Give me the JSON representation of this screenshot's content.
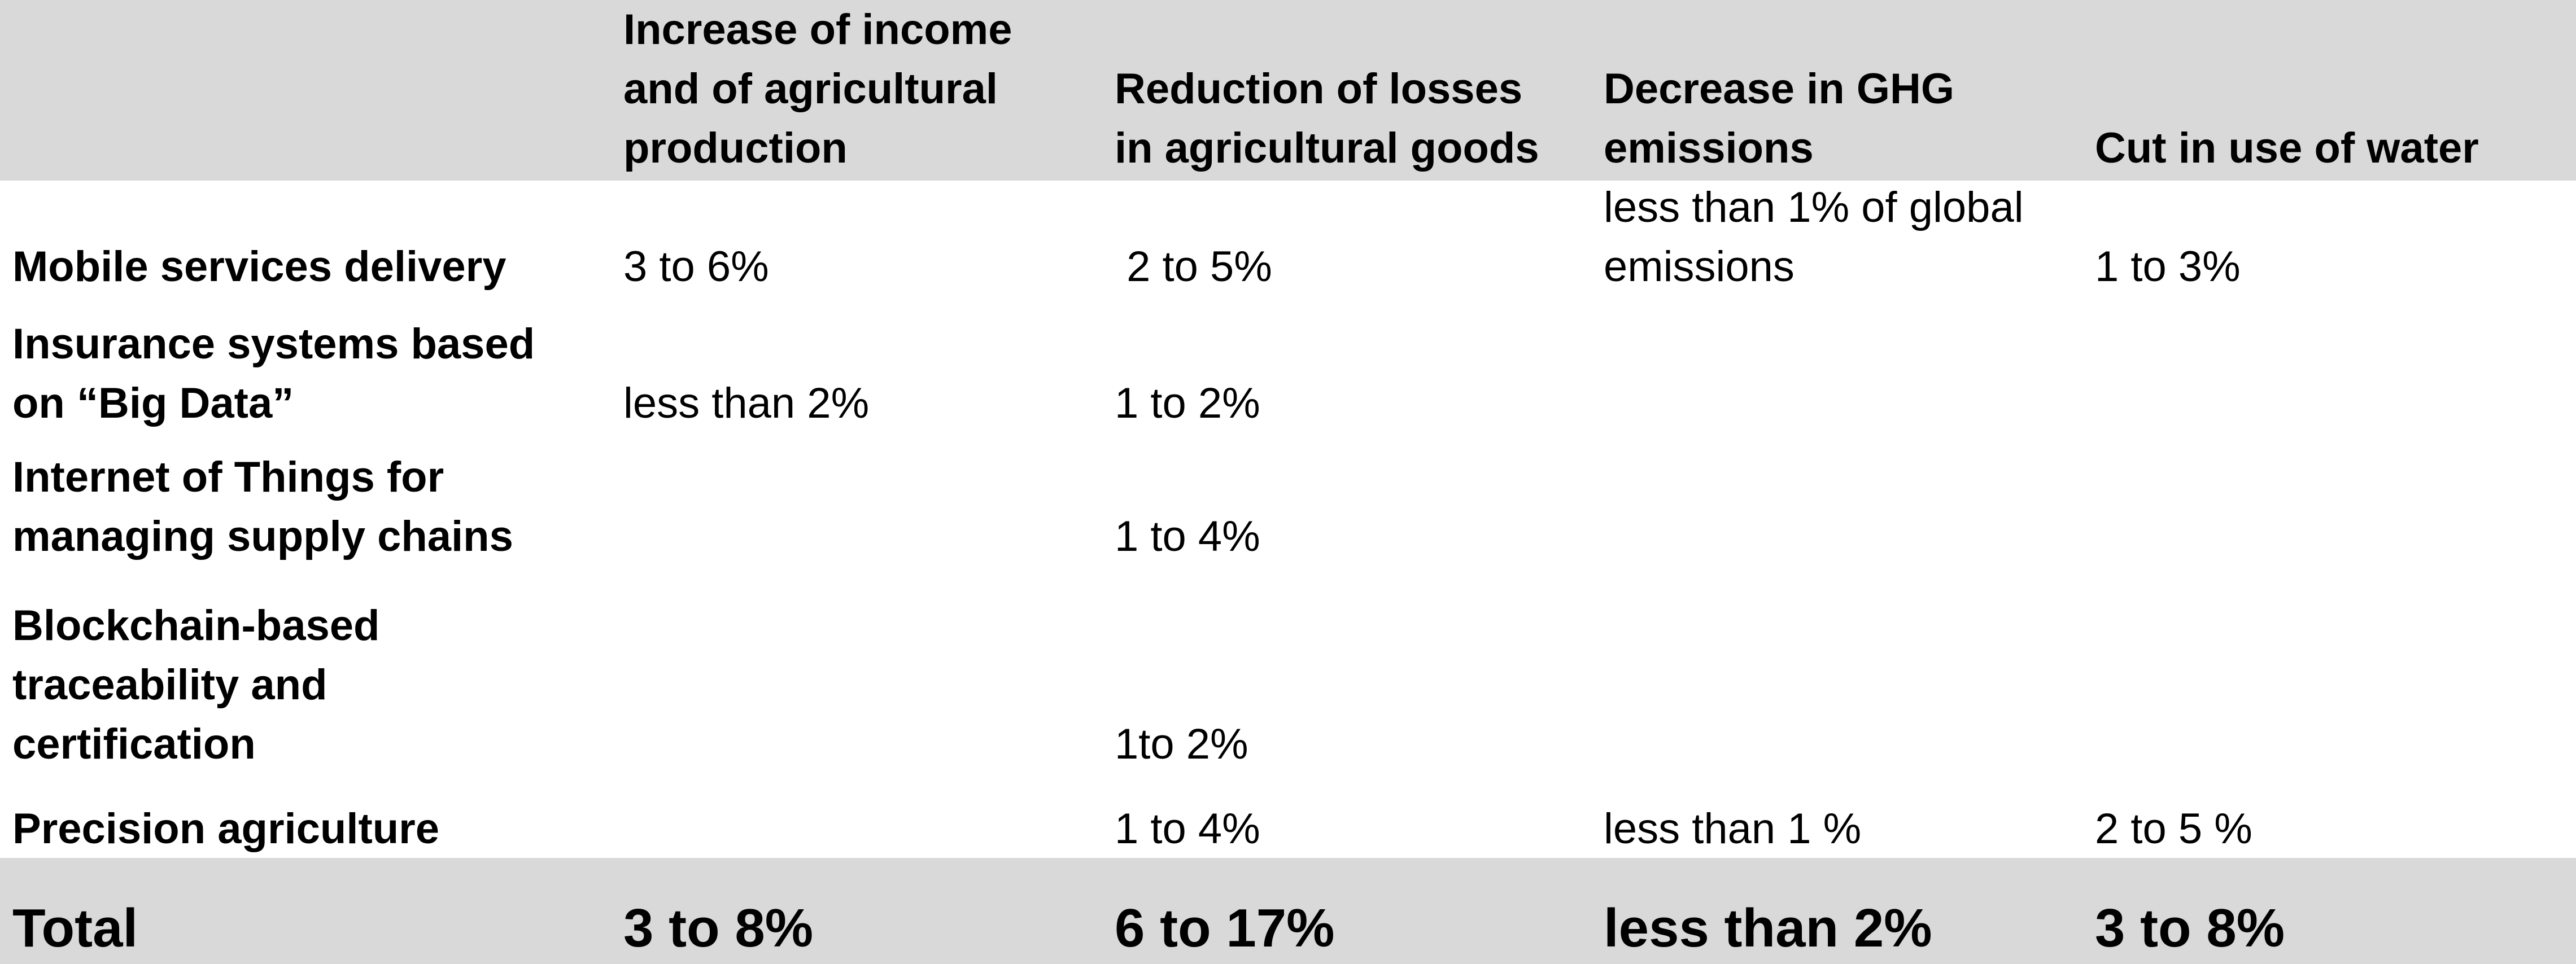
{
  "table": {
    "headers": [
      "",
      "Increase of income\nand of agricultural\nproduction",
      "Reduction of losses\nin agricultural goods",
      "Decrease in GHG\nemissions",
      "Cut in use of water"
    ],
    "rows": [
      {
        "label": "Mobile services delivery",
        "cells": [
          "3 to 6%",
          " 2 to 5%",
          "less than 1% of global\nemissions",
          "1 to 3%"
        ]
      },
      {
        "label": "Insurance systems based\non “Big Data”",
        "cells": [
          "less than 2%",
          "1 to 2%",
          "",
          ""
        ]
      },
      {
        "label": "Internet of Things for\nmanaging supply chains",
        "cells": [
          "",
          "1 to 4%",
          "",
          ""
        ]
      },
      {
        "label": "Blockchain-based\ntraceability and\ncertification",
        "cells": [
          "",
          "1to 2%",
          "",
          ""
        ]
      },
      {
        "label": "Precision agriculture",
        "cells": [
          "",
          "1 to 4%",
          "less than 1 %",
          "2 to 5 %"
        ]
      }
    ],
    "total": {
      "label": "Total",
      "cells": [
        "3 to 8%",
        "6 to 17%",
        "less than 2%",
        "3 to 8%"
      ]
    }
  }
}
